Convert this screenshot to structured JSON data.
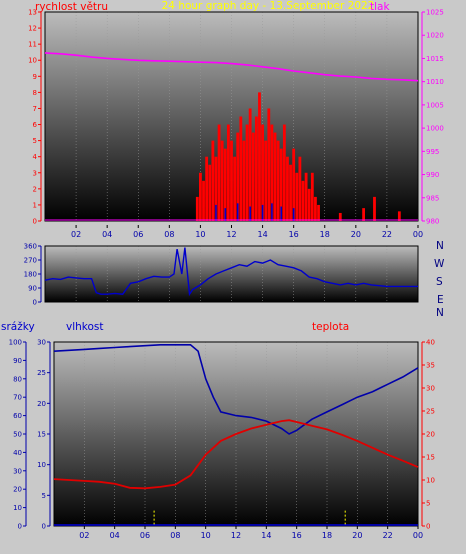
{
  "title": "24 hour graph day - 13.September 2022",
  "colors": {
    "wind": "#ff0000",
    "pressure": "#ff00ff",
    "direction": "#0000cc",
    "humidity": "#0000aa",
    "temperature": "#e00000",
    "rain": "#0000ff",
    "rain_marks": "#ffff00"
  },
  "x_ticks": [
    "02",
    "04",
    "06",
    "08",
    "10",
    "12",
    "14",
    "16",
    "18",
    "20",
    "22",
    "00"
  ],
  "chart_data": [
    {
      "type": "line",
      "labels": {
        "left": "rychlost větru",
        "right": "tlak"
      },
      "left_axis": {
        "min": 0,
        "max": 13,
        "ticks": [
          0,
          1,
          2,
          3,
          4,
          5,
          6,
          7,
          8,
          9,
          10,
          11,
          12,
          13
        ]
      },
      "right_axis": {
        "min": 980,
        "max": 1025,
        "ticks": [
          980,
          985,
          990,
          995,
          1000,
          1005,
          1010,
          1015,
          1020,
          1025
        ]
      },
      "x_range": [
        0,
        24
      ],
      "series": [
        {
          "name": "tlak",
          "axis": "right",
          "x": [
            0,
            1,
            2,
            3,
            4,
            5,
            6,
            7,
            8,
            9,
            10,
            11,
            12,
            13,
            14,
            15,
            16,
            17,
            18,
            19,
            20,
            21,
            22,
            23,
            24
          ],
          "y": [
            1016.2,
            1016,
            1015.7,
            1015.3,
            1015,
            1014.8,
            1014.6,
            1014.5,
            1014.4,
            1014.3,
            1014.2,
            1014.1,
            1013.9,
            1013.6,
            1013.2,
            1012.8,
            1012.3,
            1011.9,
            1011.5,
            1011.2,
            1011,
            1010.7,
            1010.5,
            1010.4,
            1010.2
          ]
        },
        {
          "name": "rychlost větru",
          "axis": "left",
          "style": "bars",
          "x": [
            9.8,
            10,
            10.2,
            10.4,
            10.6,
            10.8,
            11,
            11.2,
            11.4,
            11.6,
            11.8,
            12,
            12.2,
            12.4,
            12.6,
            12.8,
            13,
            13.2,
            13.4,
            13.6,
            13.8,
            14,
            14.2,
            14.4,
            14.6,
            14.8,
            15,
            15.2,
            15.4,
            15.6,
            15.8,
            16,
            16.2,
            16.4,
            16.6,
            16.8,
            17,
            17.2,
            17.4,
            17.6,
            19,
            20.5,
            21.2,
            22.8
          ],
          "y": [
            1.5,
            3,
            2.5,
            4,
            3.5,
            5,
            4,
            6,
            5,
            4.5,
            6,
            5,
            4,
            5.5,
            6.5,
            5,
            6,
            7,
            5.5,
            6.5,
            8,
            6,
            5,
            7,
            6,
            5.5,
            5,
            4.5,
            6,
            4,
            3.5,
            4.5,
            3,
            4,
            2.5,
            3,
            2,
            3,
            1.5,
            1,
            0.5,
            0.8,
            1.5,
            0.6
          ]
        },
        {
          "name": "wind direction marks",
          "axis": "left",
          "style": "bars",
          "color_key": "direction",
          "x": [
            11,
            11.6,
            12.4,
            13.2,
            14,
            14.6,
            15.2,
            16
          ],
          "y": [
            1,
            0.8,
            1.1,
            0.9,
            1,
            1.1,
            0.9,
            0.8
          ]
        }
      ]
    },
    {
      "type": "line",
      "compass": [
        "N",
        "W",
        "S",
        "E",
        "N"
      ],
      "left_axis": {
        "min": 0,
        "max": 360,
        "ticks": [
          0,
          90,
          180,
          270,
          360
        ]
      },
      "x_range": [
        0,
        24
      ],
      "series": [
        {
          "name": "wind direction",
          "x": [
            0,
            0.5,
            1,
            1.5,
            2,
            2.5,
            3,
            3.3,
            3.6,
            4,
            4.5,
            5,
            5.5,
            6,
            6.5,
            7,
            7.5,
            8,
            8.3,
            8.5,
            8.8,
            9,
            9.3,
            9.5,
            10,
            10.5,
            11,
            11.5,
            12,
            12.5,
            13,
            13.5,
            14,
            14.5,
            15,
            15.5,
            16,
            16.5,
            17,
            17.5,
            18,
            18.5,
            19,
            19.5,
            20,
            20.5,
            21,
            21.5,
            22,
            22.5,
            23,
            23.5,
            24
          ],
          "y": [
            140,
            150,
            145,
            160,
            155,
            150,
            150,
            60,
            50,
            50,
            55,
            50,
            120,
            130,
            150,
            165,
            160,
            160,
            180,
            340,
            180,
            350,
            50,
            80,
            110,
            150,
            180,
            200,
            220,
            240,
            230,
            260,
            250,
            270,
            240,
            230,
            220,
            200,
            160,
            150,
            130,
            120,
            110,
            120,
            110,
            120,
            110,
            105,
            100,
            100,
            100,
            100,
            100
          ]
        }
      ]
    },
    {
      "type": "line",
      "labels": {
        "left_outer": "srážky",
        "left_inner": "vlhkost",
        "right": "teplota"
      },
      "left_outer_axis": {
        "min": 0,
        "max": 100,
        "ticks": [
          0,
          10,
          20,
          30,
          40,
          50,
          60,
          70,
          80,
          90,
          100
        ]
      },
      "left_inner_axis": {
        "min": 0,
        "max": 30,
        "ticks": [
          0,
          5,
          10,
          15,
          20,
          25,
          30
        ]
      },
      "right_axis": {
        "min": 0,
        "max": 40,
        "ticks": [
          0,
          5,
          10,
          15,
          20,
          25,
          30,
          35,
          40
        ]
      },
      "x_range": [
        0,
        24
      ],
      "series": [
        {
          "name": "vlhkost",
          "axis": "left_outer",
          "x": [
            0,
            1,
            2,
            3,
            4,
            5,
            6,
            7,
            8,
            9,
            9.5,
            10,
            10.5,
            11,
            12,
            13,
            14,
            15,
            15.5,
            16,
            17,
            18,
            19,
            20,
            21,
            22,
            23,
            24
          ],
          "y": [
            95,
            95.5,
            96,
            96.5,
            97,
            97.5,
            98,
            98.5,
            98.5,
            98.5,
            95,
            80,
            70,
            62,
            60,
            59,
            57,
            53,
            50,
            52,
            58,
            62,
            66,
            70,
            73,
            77,
            81,
            86
          ]
        },
        {
          "name": "teplota",
          "axis": "right",
          "x": [
            0,
            1,
            2,
            3,
            4,
            5,
            6,
            7,
            8,
            9,
            10,
            11,
            12,
            13,
            14,
            15,
            15.5,
            16,
            17,
            18,
            19,
            20,
            21,
            22,
            23,
            24
          ],
          "y": [
            10.2,
            10,
            9.8,
            9.6,
            9.2,
            8.3,
            8.2,
            8.5,
            9,
            11,
            15.5,
            18.5,
            20,
            21.2,
            22,
            22.8,
            23,
            22.6,
            21.8,
            21,
            19.8,
            18.5,
            17,
            15.5,
            14.2,
            12.8
          ]
        },
        {
          "name": "srážky",
          "axis": "left_inner",
          "style": "bars",
          "color_key": "rain_marks",
          "x": [
            6.6,
            19.2
          ],
          "y": [
            2.5,
            2.5
          ]
        }
      ]
    }
  ]
}
